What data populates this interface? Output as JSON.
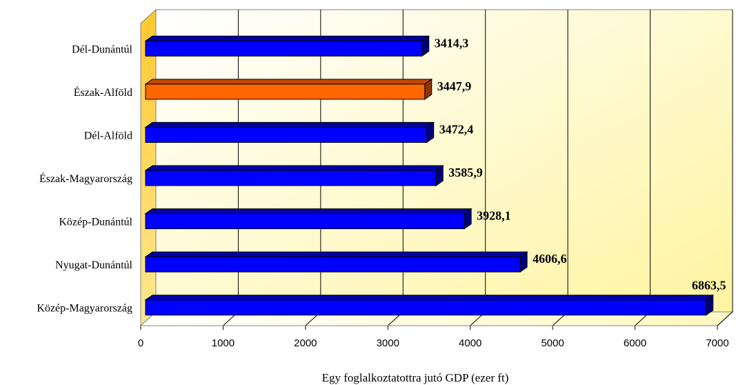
{
  "chart_data": {
    "type": "bar",
    "orientation": "horizontal",
    "style": "3d",
    "categories": [
      "Dél-Dunántúl",
      "Észak-Alföld",
      "Dél-Alföld",
      "Észak-Magyarország",
      "Közép-Dunántúl",
      "Nyugat-Dunántúl",
      "Közép-Magyarország"
    ],
    "values": [
      3414.3,
      3447.9,
      3472.4,
      3585.9,
      3928.1,
      4606.6,
      6863.5
    ],
    "value_labels": [
      "3414,3",
      "3447,9",
      "3472,4",
      "3585,9",
      "3928,1",
      "4606,6",
      "6863,5"
    ],
    "highlight_index": 1,
    "xlim": [
      0,
      7000
    ],
    "xticks": [
      0,
      1000,
      2000,
      3000,
      4000,
      5000,
      6000,
      7000
    ],
    "xlabel": "Egy foglalkoztatottra jutó GDP (ezer ft)",
    "ylabel": "",
    "title": "",
    "grid": "vertical",
    "legend": "none",
    "colors": {
      "bar": "#0000ff",
      "bar_highlight": "#ff6600",
      "bar_top": "#0000a8",
      "bar_side": "#00007a",
      "bar_top_highlight": "#c24a00",
      "bar_side_highlight": "#8f3600",
      "plot_background": "#ffffd0",
      "side_wall": "#ffd040",
      "grid": "#000000"
    }
  }
}
